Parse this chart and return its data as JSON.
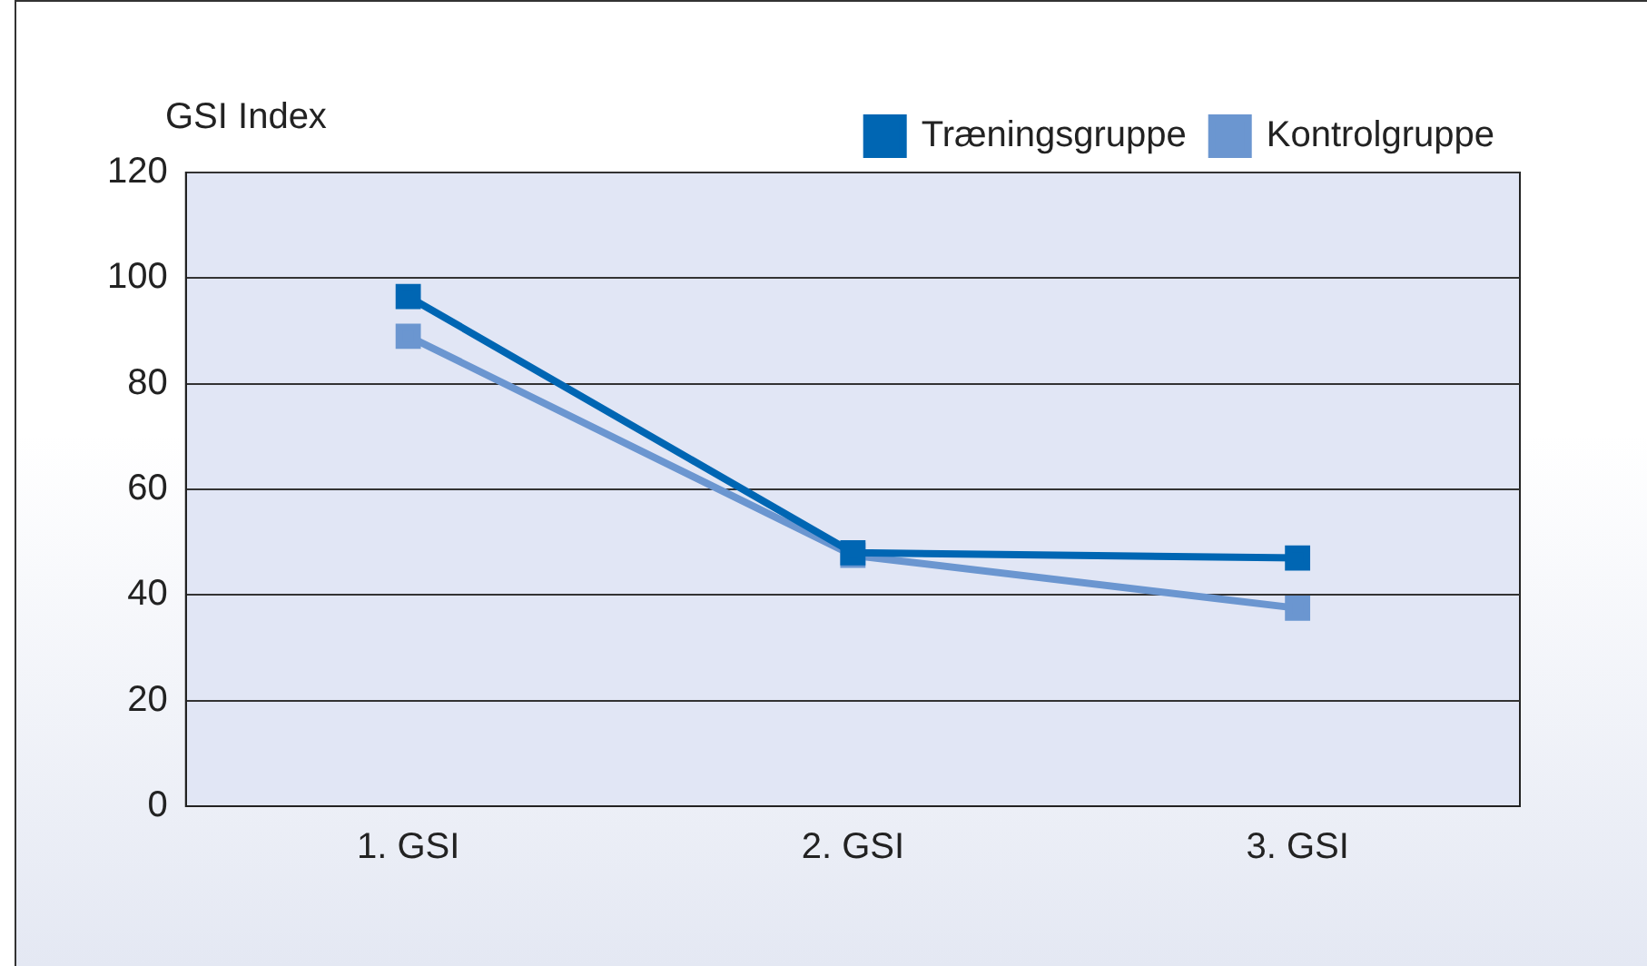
{
  "chart_data": {
    "type": "line",
    "ylabel": "GSI Index",
    "categories": [
      "1. GSI",
      "2. GSI",
      "3. GSI"
    ],
    "series": [
      {
        "name": "Kontrolgruppe",
        "color": "#6b96d0",
        "values": [
          89,
          47.5,
          37.5
        ]
      },
      {
        "name": "Træningsgruppe",
        "color": "#0066b3",
        "values": [
          96.5,
          48,
          47
        ]
      }
    ],
    "ylim": [
      0,
      120
    ],
    "yticks": [
      0,
      20,
      40,
      60,
      80,
      100,
      120
    ],
    "grid": "y",
    "legend": "top right",
    "marker": "square",
    "line_style": "solid"
  }
}
